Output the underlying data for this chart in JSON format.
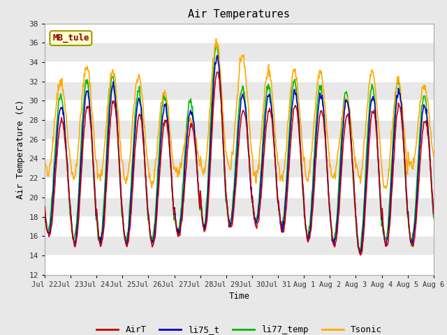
{
  "title": "Air Temperatures",
  "xlabel": "Time",
  "ylabel": "Air Temperature (C)",
  "ylim": [
    12,
    38
  ],
  "yticks": [
    12,
    14,
    16,
    18,
    20,
    22,
    24,
    26,
    28,
    30,
    32,
    34,
    36,
    38
  ],
  "site_label": "MB_tule",
  "legend_entries": [
    "AirT",
    "li75_t",
    "li77_temp",
    "Tsonic"
  ],
  "line_colors": {
    "AirT": "#cc0000",
    "li75_t": "#0000cc",
    "li77_temp": "#00bb00",
    "Tsonic": "#ffaa00"
  },
  "xtick_labels": [
    "Jul 22",
    "Jul 23",
    "Jul 24",
    "Jul 25",
    "Jul 26",
    "Jul 27",
    "Jul 28",
    "Jul 29",
    "Jul 30",
    "Jul 31",
    "Aug 1",
    "Aug 2",
    "Aug 3",
    "Aug 4",
    "Aug 5",
    "Aug 6"
  ],
  "fig_facecolor": "#e8e8e8",
  "plot_facecolor": "#ffffff",
  "n_days": 15,
  "pts_per_day": 48,
  "airt_mins": [
    16.0,
    15.0,
    15.0,
    15.0,
    15.0,
    16.0,
    16.5,
    17.0,
    17.0,
    16.5,
    15.5,
    15.0,
    14.0,
    15.0,
    15.0
  ],
  "airt_maxes": [
    28.0,
    29.5,
    30.0,
    28.5,
    28.0,
    27.5,
    33.0,
    29.0,
    29.0,
    29.5,
    29.0,
    28.5,
    29.0,
    29.5,
    28.0
  ],
  "tsonic_mins": [
    22.5,
    22.0,
    22.0,
    21.5,
    21.5,
    22.5,
    22.5,
    23.0,
    22.0,
    22.0,
    22.0,
    22.0,
    22.0,
    21.0,
    23.0
  ],
  "tsonic_maxes": [
    32.0,
    33.5,
    33.0,
    32.5,
    31.0,
    28.0,
    36.0,
    34.5,
    33.0,
    33.0,
    33.0,
    30.0,
    33.0,
    32.0,
    31.5
  ]
}
